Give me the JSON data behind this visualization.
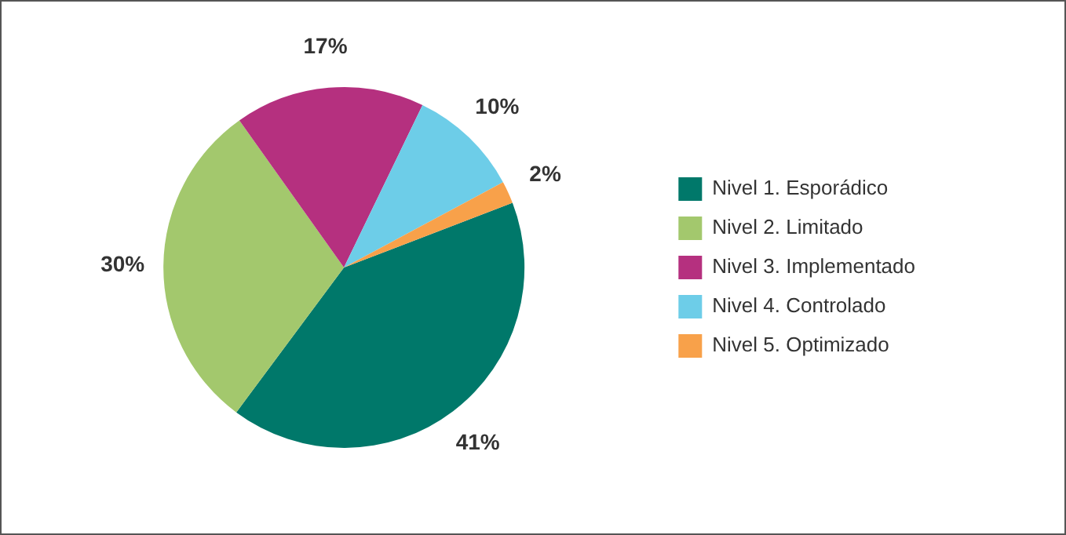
{
  "chart_data": {
    "type": "pie",
    "categories": [
      "Nivel 1. Esporádico",
      "Nivel 2. Limitado",
      "Nivel 3. Implementado",
      "Nivel 4. Controlado",
      "Nivel 5. Optimizado"
    ],
    "values": [
      41,
      30,
      17,
      10,
      2
    ],
    "colors": [
      "#00786a",
      "#a3c86d",
      "#b5307f",
      "#6dcde8",
      "#f8a14a"
    ],
    "value_labels": [
      "41%",
      "30%",
      "17%",
      "10%",
      "2%"
    ],
    "legend": "right"
  }
}
